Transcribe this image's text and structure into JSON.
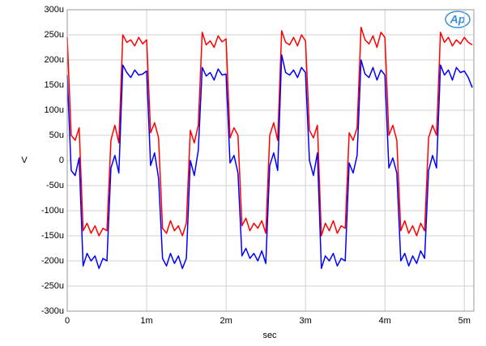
{
  "chart_data": {
    "type": "line",
    "xlabel": "sec",
    "ylabel": "V",
    "logo": "Ap",
    "x": [
      0,
      5e-05,
      0.0001,
      0.00015,
      0.0002,
      0.00025,
      0.0003,
      0.00035,
      0.0004,
      0.00045,
      0.0005,
      0.00055,
      0.0006,
      0.00065,
      0.0007,
      0.00075,
      0.0008,
      0.00085,
      0.0009,
      0.00095,
      0.001,
      0.00105,
      0.0011,
      0.00115,
      0.0012,
      0.00125,
      0.0013,
      0.00135,
      0.0014,
      0.00145,
      0.0015,
      0.00155,
      0.0016,
      0.00165,
      0.0017,
      0.00175,
      0.0018,
      0.00185,
      0.0019,
      0.00195,
      0.002,
      0.00205,
      0.0021,
      0.00215,
      0.0022,
      0.00225,
      0.0023,
      0.00235,
      0.0024,
      0.00245,
      0.0025,
      0.00255,
      0.0026,
      0.00265,
      0.0027,
      0.00275,
      0.0028,
      0.00285,
      0.0029,
      0.00295,
      0.003,
      0.00305,
      0.0031,
      0.00315,
      0.0032,
      0.00325,
      0.0033,
      0.00335,
      0.0034,
      0.00345,
      0.0035,
      0.00355,
      0.0036,
      0.00365,
      0.0037,
      0.00375,
      0.0038,
      0.00385,
      0.0039,
      0.00395,
      0.004,
      0.00405,
      0.0041,
      0.00415,
      0.0042,
      0.00425,
      0.0043,
      0.00435,
      0.0044,
      0.00445,
      0.0045,
      0.00455,
      0.0046,
      0.00465,
      0.0047,
      0.00475,
      0.0048,
      0.00485,
      0.0049,
      0.00495,
      0.005,
      0.00505,
      0.0051
    ],
    "series": [
      {
        "color": "#ff0000",
        "values": [
          0.000245,
          5e-05,
          4e-05,
          6.5e-05,
          -0.00014,
          -0.000125,
          -0.000145,
          -0.00013,
          -0.00015,
          -0.000135,
          -0.00014,
          4e-05,
          7e-05,
          3.5e-05,
          0.00025,
          0.000235,
          0.00024,
          0.000228,
          0.000245,
          0.000232,
          0.00024,
          5.5e-05,
          7.5e-05,
          4.5e-05,
          -0.000135,
          -0.000145,
          -0.00012,
          -0.00014,
          -0.00013,
          -0.00015,
          -0.000125,
          6e-05,
          3.5e-05,
          7e-05,
          0.000255,
          0.00023,
          0.000238,
          0.000225,
          0.000248,
          0.000236,
          0.000242,
          4.5e-05,
          6.5e-05,
          5e-05,
          -0.00013,
          -0.000115,
          -0.00014,
          -0.000125,
          -0.000135,
          -0.00012,
          -0.000145,
          5e-05,
          7.5e-05,
          4e-05,
          0.000258,
          0.000235,
          0.00023,
          0.000245,
          0.000228,
          0.00025,
          0.000238,
          6e-05,
          4.5e-05,
          7e-05,
          -0.00015,
          -0.000125,
          -0.00014,
          -0.00012,
          -0.000145,
          -0.00013,
          -0.000135,
          5.5e-05,
          4e-05,
          6.5e-05,
          0.000265,
          0.00024,
          0.000232,
          0.000248,
          0.000225,
          0.000255,
          0.000245,
          5e-05,
          7e-05,
          4e-05,
          -0.00014,
          -0.00012,
          -0.000145,
          -0.00013,
          -0.00015,
          -0.000125,
          -0.00014,
          4.5e-05,
          7e-05,
          5e-05,
          0.000255,
          0.000235,
          0.000245,
          0.000228,
          0.00024,
          0.000232,
          0.000245,
          0.000235,
          0.00023
        ]
      },
      {
        "color": "#0000ff",
        "values": [
          0.00017,
          -2e-05,
          -3e-05,
          5e-06,
          -0.00021,
          -0.000185,
          -0.0002,
          -0.00019,
          -0.000215,
          -0.000195,
          -0.0002,
          -1.5e-05,
          1e-05,
          -2.5e-05,
          0.00019,
          0.000175,
          0.000165,
          0.00018,
          0.00017,
          0.000172,
          0.000178,
          -1e-05,
          1.5e-05,
          -3.5e-05,
          -0.000195,
          -0.00021,
          -0.000185,
          -0.000205,
          -0.00019,
          -0.000215,
          -0.000195,
          0,
          -3e-05,
          2e-05,
          0.000185,
          0.000168,
          0.000175,
          0.00016,
          0.000182,
          0.00017,
          0.000172,
          -5e-06,
          1e-05,
          -2.5e-05,
          -0.00019,
          -0.000175,
          -0.000195,
          -0.000185,
          -0.0002,
          -0.00018,
          -0.000205,
          -1e-05,
          1.5e-05,
          -2e-05,
          0.00021,
          0.000175,
          0.00017,
          0.00018,
          0.000165,
          0.000185,
          0.000175,
          0,
          -3e-05,
          1.5e-05,
          -0.000215,
          -0.00019,
          -0.0002,
          -0.000185,
          -0.00021,
          -0.000195,
          -0.0002,
          -5e-06,
          -2.5e-05,
          1e-05,
          0.0002,
          0.000172,
          0.000165,
          0.000185,
          0.00016,
          0.00018,
          0.00017,
          -1.5e-05,
          5e-06,
          -2.5e-05,
          -0.0002,
          -0.000185,
          -0.00021,
          -0.00019,
          -0.000205,
          -0.00018,
          -0.000195,
          -2e-05,
          1e-05,
          -1.5e-05,
          0.00019,
          0.00017,
          0.00018,
          0.00016,
          0.000185,
          0.000175,
          0.000178,
          0.000165,
          0.000145
        ]
      }
    ],
    "xlim": [
      0,
      0.00512
    ],
    "xticks": [
      0,
      {
        "value": 0.001,
        "label": "1m"
      },
      {
        "value": 0.002,
        "label": "2m"
      },
      {
        "value": 0.003,
        "label": "3m"
      },
      {
        "value": 0.004,
        "label": "4m"
      },
      {
        "value": 0.005,
        "label": "5m"
      }
    ],
    "ylim": [
      -0.0003,
      0.0003
    ],
    "yticks": [
      {
        "value": -0.0003,
        "label": "-300u"
      },
      {
        "value": -0.00025,
        "label": "-250u"
      },
      {
        "value": -0.0002,
        "label": "-200u"
      },
      {
        "value": -0.00015,
        "label": "-150u"
      },
      {
        "value": -0.0001,
        "label": "-100u"
      },
      {
        "value": -5e-05,
        "label": "-50u"
      },
      0,
      {
        "value": 5e-05,
        "label": "50u"
      },
      {
        "value": 0.0001,
        "label": "100u"
      },
      {
        "value": 0.00015,
        "label": "150u"
      },
      {
        "value": 0.0002,
        "label": "200u"
      },
      {
        "value": 0.00025,
        "label": "250u"
      },
      {
        "value": 0.0003,
        "label": "300u"
      }
    ],
    "grid": true
  }
}
